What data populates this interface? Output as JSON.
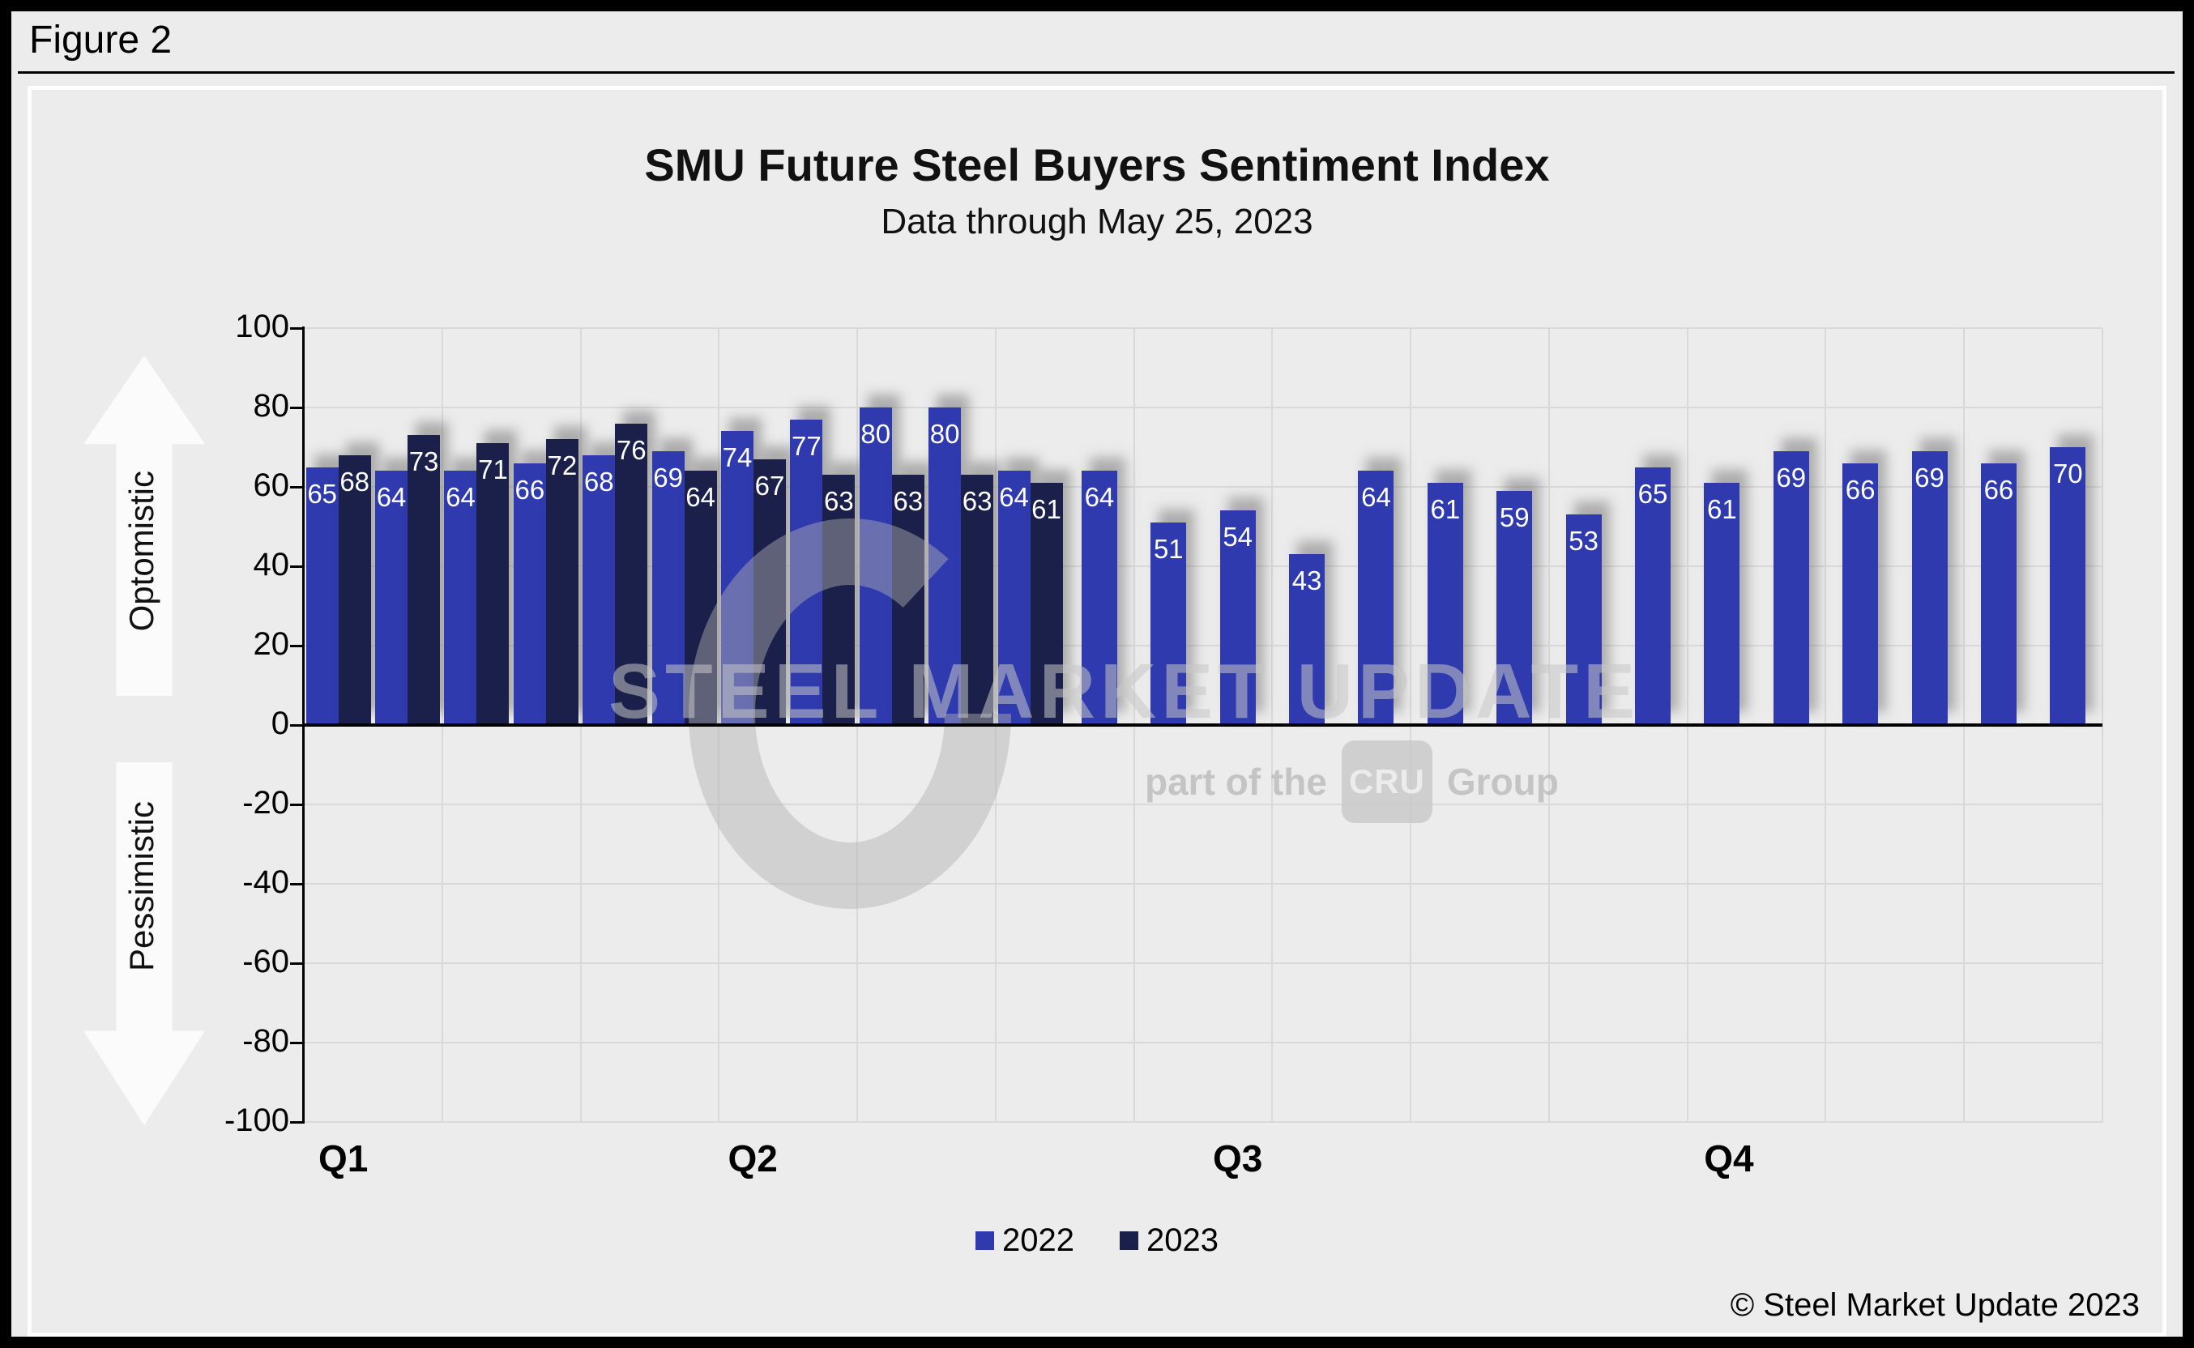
{
  "figure_label": "Figure 2",
  "chart_data": {
    "type": "bar",
    "title": "SMU Future Steel Buyers Sentiment Index",
    "subtitle": "Data through May 25, 2023",
    "ylabel": "",
    "xlabel": "",
    "ylim": [
      -100,
      100
    ],
    "y_step": 20,
    "y_tick_labels": [
      "100",
      "80",
      "60",
      "40",
      "20",
      "0",
      "-20",
      "-40",
      "-60",
      "-80",
      "-100"
    ],
    "x_quarter_labels": [
      "Q1",
      "Q2",
      "Q3",
      "Q4"
    ],
    "grid": true,
    "legend_position": "bottom",
    "periods": 26,
    "axis_annotations": {
      "positive": "Optomistic",
      "negative": "Pessimistic"
    },
    "series": [
      {
        "name": "2022",
        "color": "#2e3aad",
        "values": [
          65,
          64,
          64,
          66,
          68,
          69,
          74,
          77,
          80,
          80,
          64,
          64,
          51,
          54,
          43,
          64,
          61,
          59,
          53,
          65,
          61,
          69,
          66,
          69,
          66,
          70
        ]
      },
      {
        "name": "2023",
        "color": "#1a2049",
        "values": [
          68,
          73,
          71,
          72,
          76,
          64,
          67,
          63,
          63,
          63,
          61
        ]
      }
    ]
  },
  "watermark": {
    "line1": "STEEL MARKET UPDATE",
    "line2_prefix": "part of the",
    "line2_box": "CRU",
    "line2_suffix": "Group"
  },
  "copyright": "© Steel Market Update 2023"
}
